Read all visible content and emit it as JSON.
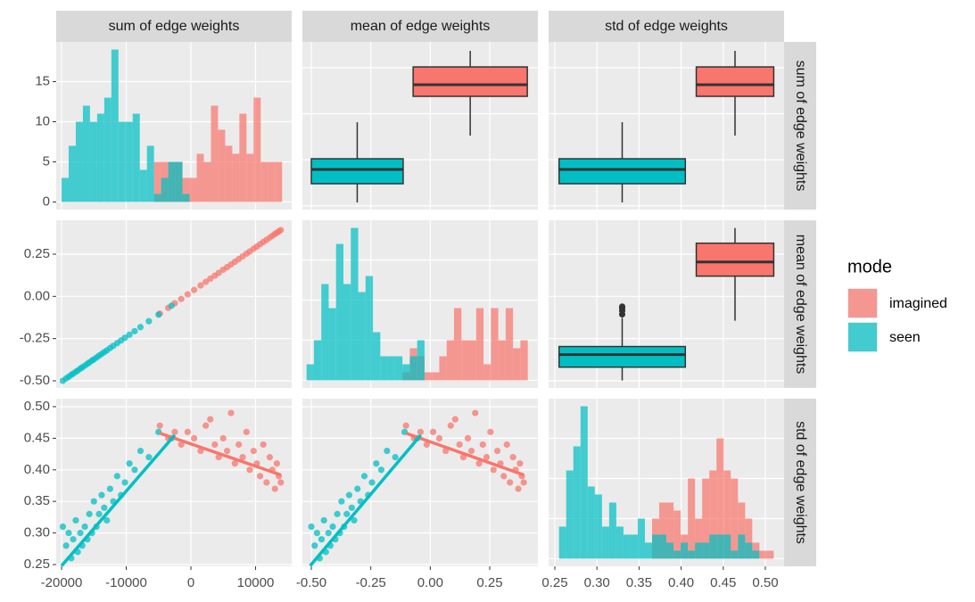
{
  "variables": [
    "sum of edge weights",
    "mean of edge weights",
    "std of edge weights"
  ],
  "legend_title": "mode",
  "chart_data": [
    {
      "type": "histogram",
      "bins": [
        -20000,
        -18900,
        -17800,
        -16700,
        -15600,
        -14500,
        -13400,
        -12300,
        -11200,
        -10100,
        -9000,
        -7900,
        -6800,
        -5700,
        -4600,
        -3500,
        -2400,
        -1300,
        -200,
        900,
        2000,
        3100,
        4200,
        5300,
        6400,
        7500,
        8600,
        9700,
        10800,
        11900,
        13000,
        14100
      ],
      "series": [
        {
          "name": "imagined",
          "color": "#F8766D",
          "values": [
            0,
            0,
            0,
            0,
            0,
            0,
            0,
            0,
            0,
            0,
            0,
            0,
            0,
            5,
            5,
            5,
            5,
            3,
            3,
            6,
            5,
            12,
            9,
            7,
            6,
            11,
            6,
            13,
            5,
            5,
            5
          ]
        },
        {
          "name": "seen",
          "color": "#00BFC4",
          "values": [
            3,
            7,
            10,
            12,
            10,
            11,
            13,
            19,
            10,
            10,
            11,
            4,
            7,
            1,
            3,
            5,
            5,
            1,
            0,
            0,
            0,
            0,
            0,
            0,
            0,
            0,
            0,
            0,
            0,
            0,
            0
          ]
        }
      ],
      "xlim": [
        -20830,
        15590
      ],
      "xticks": [
        -20000,
        -10000,
        0,
        10000
      ],
      "ylim": [
        -0.95,
        19.95
      ],
      "yticks": [
        0,
        5,
        10,
        15
      ]
    },
    {
      "type": "box",
      "series": [
        {
          "xrange": [
            -0.072,
            0.408
          ],
          "whisker_low": -4750,
          "q1": 3770,
          "median": 6290,
          "q3": 10160,
          "whisker_high": 13650,
          "outliers": []
        },
        {
          "xrange": [
            -0.5,
            -0.114
          ],
          "whisker_low": -19280,
          "q1": -15210,
          "median": -12110,
          "q3": -9790,
          "whisker_high": -1850,
          "outliers": []
        }
      ],
      "xlim": [
        -0.5375,
        0.4525
      ],
      "xticks": [
        -0.5,
        -0.25,
        0,
        0.25
      ],
      "ylim": [
        -20830,
        15590
      ],
      "yticks": [
        -20000,
        -10000,
        0,
        10000
      ]
    },
    {
      "type": "box",
      "series": [
        {
          "xrange": [
            0.418,
            0.51
          ],
          "whisker_low": -4750,
          "q1": 3770,
          "median": 6290,
          "q3": 10160,
          "whisker_high": 13650,
          "outliers": []
        },
        {
          "xrange": [
            0.255,
            0.405
          ],
          "whisker_low": -19280,
          "q1": -15210,
          "median": -12110,
          "q3": -9790,
          "whisker_high": -1850,
          "outliers": []
        }
      ],
      "xlim": [
        0.2426,
        0.5223
      ],
      "xticks": [
        0.25,
        0.3,
        0.35,
        0.4,
        0.45,
        0.5
      ],
      "ylim": [
        -20830,
        15590
      ],
      "yticks": [
        -20000,
        -10000,
        0,
        10000
      ]
    },
    {
      "type": "scatter",
      "series": [
        {
          "x": [
            -4800,
            -3500,
            -2500,
            -1500,
            -500,
            500,
            1500,
            2300,
            3000,
            3700,
            4300,
            5000,
            5600,
            6200,
            6800,
            7400,
            8000,
            8600,
            9100,
            9700,
            10200,
            10700,
            11200,
            11700,
            12200,
            12600,
            13000,
            13300,
            13600,
            13900
          ],
          "values": [
            -0.102,
            -0.068,
            -0.041,
            -0.015,
            0.012,
            0.038,
            0.065,
            0.086,
            0.105,
            0.123,
            0.139,
            0.158,
            0.173,
            0.189,
            0.205,
            0.221,
            0.237,
            0.253,
            0.266,
            0.282,
            0.295,
            0.309,
            0.322,
            0.335,
            0.348,
            0.359,
            0.37,
            0.377,
            0.385,
            0.393
          ]
        },
        {
          "x": [
            -19800,
            -19300,
            -18900,
            -18500,
            -18200,
            -17800,
            -17500,
            -17100,
            -16800,
            -16400,
            -16000,
            -15700,
            -15300,
            -15000,
            -14600,
            -14200,
            -13800,
            -13400,
            -13000,
            -12500,
            -12000,
            -11400,
            -10800,
            -10200,
            -9500,
            -8700,
            -7800,
            -6500,
            -5000,
            -3000
          ],
          "values": [
            -0.5,
            -0.486,
            -0.476,
            -0.465,
            -0.457,
            -0.447,
            -0.439,
            -0.428,
            -0.42,
            -0.41,
            -0.399,
            -0.391,
            -0.38,
            -0.373,
            -0.362,
            -0.351,
            -0.341,
            -0.33,
            -0.32,
            -0.306,
            -0.293,
            -0.277,
            -0.261,
            -0.245,
            -0.227,
            -0.206,
            -0.182,
            -0.147,
            -0.108,
            -0.055
          ]
        }
      ],
      "xlim": [
        -20830,
        15590
      ],
      "xticks": [
        -20000,
        -10000,
        0,
        10000
      ],
      "ylim": [
        -0.5423,
        0.4507
      ],
      "yticks": [
        {
          "value": -0.5,
          "label": "-0.50"
        },
        {
          "value": -0.25,
          "label": "-0.25"
        },
        {
          "value": 0,
          "label": "0.00"
        },
        {
          "value": 0.25,
          "label": "0.25"
        }
      ]
    },
    {
      "type": "histogram",
      "bins": [
        -0.52,
        -0.489,
        -0.458,
        -0.427,
        -0.396,
        -0.365,
        -0.334,
        -0.303,
        -0.272,
        -0.241,
        -0.21,
        -0.179,
        -0.148,
        -0.117,
        -0.086,
        -0.055,
        -0.024,
        0.007,
        0.038,
        0.069,
        0.1,
        0.131,
        0.162,
        0.193,
        0.224,
        0.255,
        0.286,
        0.317,
        0.348,
        0.379,
        0.41
      ],
      "series": [
        {
          "values": [
            0,
            0,
            0,
            0,
            0,
            0,
            0,
            0,
            0,
            0,
            0,
            0,
            0,
            1,
            4,
            3,
            1,
            1,
            3,
            5,
            9,
            5,
            5,
            9,
            2,
            9,
            5,
            9,
            4,
            5
          ]
        },
        {
          "values": [
            2,
            5,
            12,
            9,
            17,
            12,
            19,
            11,
            13,
            6,
            3,
            3,
            3,
            2,
            3,
            5,
            0,
            0,
            0,
            0,
            0,
            0,
            0,
            0,
            0,
            0,
            0,
            0,
            0,
            0
          ]
        }
      ],
      "xlim": [
        -0.5375,
        0.4525
      ],
      "xticks": [
        -0.5,
        -0.25,
        0,
        0.25
      ],
      "ylim": [
        -0.95,
        19.95
      ],
      "yticks": [
        0,
        5,
        10,
        15
      ]
    },
    {
      "type": "box",
      "series": [
        {
          "xrange": [
            0.418,
            0.51
          ],
          "whisker_low": -0.144,
          "q1": 0.12,
          "median": 0.204,
          "q3": 0.315,
          "whisker_high": 0.405,
          "outliers": []
        },
        {
          "xrange": [
            0.255,
            0.405
          ],
          "whisker_low": -0.498,
          "q1": -0.419,
          "median": -0.345,
          "q3": -0.297,
          "whisker_high": -0.128,
          "outliers": [
            -0.107,
            -0.086,
            -0.07,
            -0.06
          ]
        }
      ],
      "xlim": [
        0.2426,
        0.5223
      ],
      "xticks": [
        0.25,
        0.3,
        0.35,
        0.4,
        0.45,
        0.5
      ],
      "ylim": [
        -0.5423,
        0.4507
      ],
      "yticks": [
        -0.5,
        -0.25,
        0,
        0.25
      ]
    },
    {
      "type": "scatter",
      "series": [
        {
          "x": [
            -4800,
            -3500,
            -2500,
            -1500,
            -500,
            500,
            1500,
            2300,
            3000,
            3700,
            4300,
            5000,
            5600,
            6200,
            6800,
            7400,
            8000,
            8600,
            9100,
            9700,
            10200,
            10700,
            11200,
            11700,
            12200,
            12600,
            13000,
            13300,
            13600,
            13900
          ],
          "values": [
            0.47,
            0.45,
            0.46,
            0.44,
            0.46,
            0.45,
            0.43,
            0.47,
            0.48,
            0.44,
            0.42,
            0.45,
            0.43,
            0.49,
            0.41,
            0.44,
            0.42,
            0.46,
            0.4,
            0.43,
            0.41,
            0.39,
            0.44,
            0.38,
            0.42,
            0.4,
            0.37,
            0.41,
            0.39,
            0.38
          ],
          "fit_x": [
            -4800,
            13900
          ],
          "fit": [
            0.458,
            0.392
          ]
        },
        {
          "x": [
            -19800,
            -19300,
            -18900,
            -18500,
            -18200,
            -17800,
            -17500,
            -17100,
            -16800,
            -16400,
            -16000,
            -15700,
            -15300,
            -15000,
            -14600,
            -14200,
            -13800,
            -13400,
            -13000,
            -12500,
            -12000,
            -11400,
            -10800,
            -10200,
            -9500,
            -8700,
            -7800,
            -6500,
            -5000,
            -3000
          ],
          "values": [
            0.31,
            0.28,
            0.3,
            0.26,
            0.29,
            0.32,
            0.27,
            0.3,
            0.28,
            0.31,
            0.29,
            0.33,
            0.3,
            0.35,
            0.31,
            0.33,
            0.36,
            0.34,
            0.32,
            0.37,
            0.35,
            0.39,
            0.36,
            0.38,
            0.41,
            0.4,
            0.43,
            0.42,
            0.46,
            0.45
          ],
          "fit_x": [
            -20000,
            -2500
          ],
          "fit": [
            0.248,
            0.455
          ]
        }
      ],
      "xlim": [
        -20830,
        15590
      ],
      "xticks": [
        -20000,
        -10000,
        0,
        10000
      ],
      "ylim": [
        0.2472,
        0.5127
      ],
      "yticks": [
        {
          "value": 0.25,
          "label": "0.25"
        },
        {
          "value": 0.3,
          "label": "0.30"
        },
        {
          "value": 0.35,
          "label": "0.35"
        },
        {
          "value": 0.4,
          "label": "0.40"
        },
        {
          "value": 0.45,
          "label": "0.45"
        },
        {
          "value": 0.5,
          "label": "0.50"
        }
      ]
    },
    {
      "type": "scatter",
      "series": [
        {
          "x": [
            -0.102,
            -0.068,
            -0.041,
            -0.015,
            0.012,
            0.038,
            0.065,
            0.086,
            0.105,
            0.123,
            0.139,
            0.158,
            0.173,
            0.189,
            0.205,
            0.221,
            0.237,
            0.253,
            0.266,
            0.282,
            0.295,
            0.309,
            0.322,
            0.335,
            0.348,
            0.359,
            0.37,
            0.377,
            0.385,
            0.393
          ],
          "values": [
            0.47,
            0.45,
            0.46,
            0.44,
            0.46,
            0.45,
            0.43,
            0.47,
            0.48,
            0.44,
            0.42,
            0.45,
            0.43,
            0.49,
            0.41,
            0.44,
            0.42,
            0.46,
            0.4,
            0.43,
            0.41,
            0.39,
            0.44,
            0.38,
            0.42,
            0.4,
            0.37,
            0.41,
            0.39,
            0.38
          ],
          "fit_x": [
            -0.102,
            0.393
          ],
          "fit": [
            0.458,
            0.392
          ]
        },
        {
          "x": [
            -0.5,
            -0.486,
            -0.476,
            -0.465,
            -0.457,
            -0.447,
            -0.439,
            -0.428,
            -0.42,
            -0.41,
            -0.399,
            -0.391,
            -0.38,
            -0.373,
            -0.362,
            -0.351,
            -0.341,
            -0.33,
            -0.32,
            -0.306,
            -0.293,
            -0.277,
            -0.261,
            -0.245,
            -0.227,
            -0.206,
            -0.182,
            -0.147,
            -0.108,
            -0.055
          ],
          "values": [
            0.31,
            0.28,
            0.3,
            0.26,
            0.29,
            0.32,
            0.27,
            0.3,
            0.28,
            0.31,
            0.29,
            0.33,
            0.3,
            0.35,
            0.31,
            0.33,
            0.36,
            0.34,
            0.32,
            0.37,
            0.35,
            0.39,
            0.36,
            0.38,
            0.41,
            0.4,
            0.43,
            0.42,
            0.46,
            0.45
          ],
          "fit_x": [
            -0.505,
            -0.04
          ],
          "fit": [
            0.248,
            0.455
          ]
        }
      ],
      "xlim": [
        -0.5375,
        0.4525
      ],
      "xticks": [
        {
          "value": -0.5,
          "label": "-0.50"
        },
        {
          "value": -0.25,
          "label": "-0.25"
        },
        {
          "value": 0,
          "label": "0.00"
        },
        {
          "value": 0.25,
          "label": "0.25"
        }
      ],
      "ylim": [
        0.2472,
        0.5127
      ],
      "yticks": [
        0.25,
        0.3,
        0.35,
        0.4,
        0.45,
        0.5
      ]
    },
    {
      "type": "histogram",
      "bins": [
        0.255,
        0.2635,
        0.272,
        0.2805,
        0.289,
        0.2975,
        0.306,
        0.3145,
        0.323,
        0.3315,
        0.34,
        0.3485,
        0.357,
        0.3655,
        0.374,
        0.3825,
        0.391,
        0.3995,
        0.408,
        0.4165,
        0.425,
        0.4335,
        0.442,
        0.4505,
        0.459,
        0.4675,
        0.476,
        0.4845,
        0.493,
        0.5015,
        0.51
      ],
      "series": [
        {
          "values": [
            0,
            0,
            0,
            0,
            0,
            0,
            0,
            0,
            0,
            0,
            0,
            0,
            0,
            5,
            7,
            7,
            6,
            3,
            10,
            5,
            10,
            11,
            15,
            11,
            10,
            7,
            5,
            2,
            1,
            1
          ]
        },
        {
          "values": [
            4,
            11,
            14,
            19,
            9,
            8,
            4,
            7,
            4,
            3,
            3,
            5,
            2,
            3,
            3,
            2,
            1,
            2,
            1,
            2,
            2,
            3,
            3,
            3,
            1,
            3,
            2,
            1,
            0,
            0
          ]
        }
      ],
      "xlim": [
        0.2426,
        0.5223
      ],
      "xticks": [
        {
          "value": 0.25,
          "label": "0.25"
        },
        {
          "value": 0.3,
          "label": "0.30"
        },
        {
          "value": 0.35,
          "label": "0.35"
        },
        {
          "value": 0.4,
          "label": "0.40"
        },
        {
          "value": 0.45,
          "label": "0.45"
        },
        {
          "value": 0.5,
          "label": "0.50"
        }
      ],
      "ylim": [
        -0.95,
        19.95
      ],
      "yticks": [
        0,
        5,
        10,
        15
      ]
    }
  ]
}
